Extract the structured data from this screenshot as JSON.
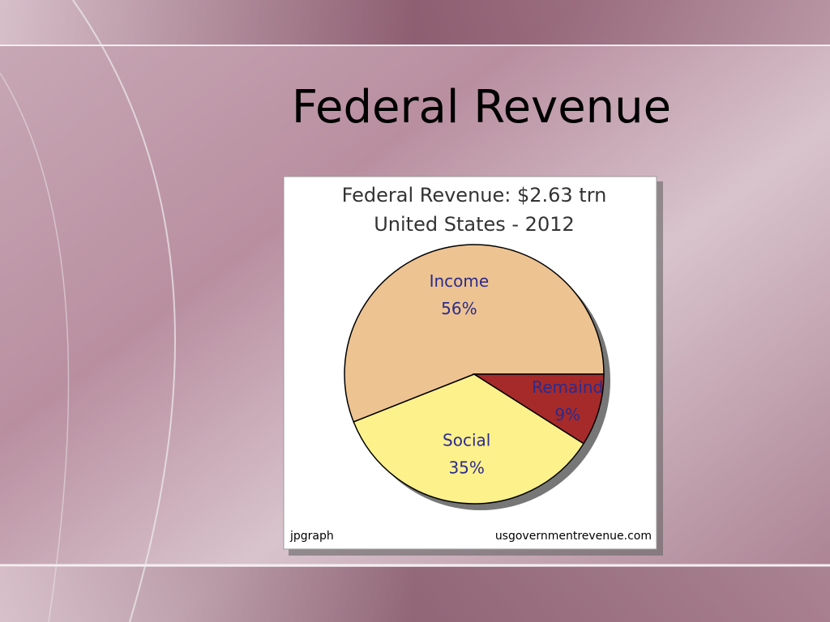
{
  "slide_title": "Federal Revenue",
  "chart_data": {
    "type": "pie",
    "title": "Federal Revenue: $2.63 trn",
    "subtitle": "United States - 2012",
    "categories": [
      "Income",
      "Social",
      "Remaind"
    ],
    "values": [
      56,
      35,
      9
    ],
    "value_labels": [
      "56%",
      "35%",
      "9%"
    ],
    "colors": [
      "#edc392",
      "#fdf18c",
      "#a62a2a"
    ],
    "footer_left": "jpgraph",
    "footer_right": "usgovernmentrevenue.com"
  }
}
